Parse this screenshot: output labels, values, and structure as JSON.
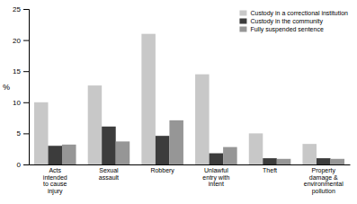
{
  "chart_data": {
    "type": "bar",
    "categories": [
      "Acts\nintended\nto cause\ninjury",
      "Sexual\nassault",
      "Robbery",
      "Unlawful\nentry with\nintent",
      "Theft",
      "Property\ndamage &\nenvironmental\npollution"
    ],
    "series": [
      {
        "name": "Custody in a correctional institution",
        "color": "#c8c8c8",
        "values": [
          10.0,
          12.7,
          21.0,
          14.5,
          5.0,
          3.3
        ]
      },
      {
        "name": "Custody in the community",
        "color": "#3c3c3c",
        "values": [
          3.0,
          6.1,
          4.6,
          1.8,
          1.0,
          1.0
        ]
      },
      {
        "name": "Fully suspended sentence",
        "color": "#969696",
        "values": [
          3.2,
          3.7,
          7.1,
          2.8,
          0.9,
          0.9
        ]
      }
    ],
    "ylabel": "%",
    "ylim": [
      0,
      25
    ],
    "yticks": [
      0,
      5,
      10,
      15,
      20,
      25
    ],
    "grid": false,
    "legend": "upper-right"
  }
}
